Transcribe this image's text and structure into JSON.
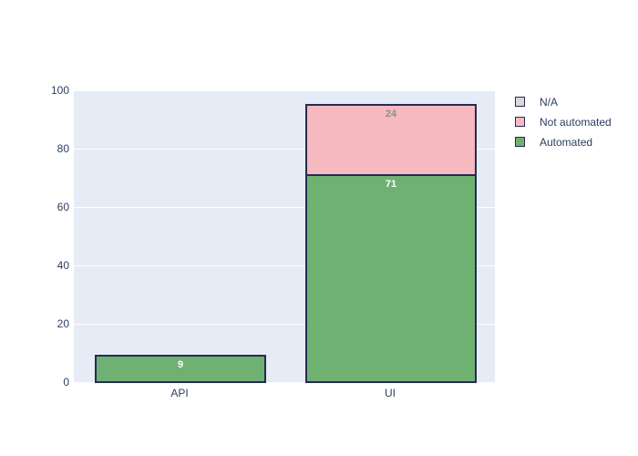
{
  "chart_data": {
    "type": "bar",
    "stacked": true,
    "title": "",
    "xlabel": "",
    "ylabel": "",
    "categories": [
      "API",
      "UI"
    ],
    "series": [
      {
        "name": "Automated",
        "color": "#6fb172",
        "label_color": "#ffffff",
        "values": [
          9,
          71
        ]
      },
      {
        "name": "Not automated",
        "color": "#f5b9bf",
        "label_color": "#8e8e8e",
        "values": [
          0,
          24
        ]
      },
      {
        "name": "N/A",
        "color": "#d9d9d9",
        "label_color": "#2a3f5f",
        "values": [
          0,
          0
        ]
      }
    ],
    "ylim": [
      0,
      100
    ],
    "yticks": [
      0,
      20,
      40,
      60,
      80,
      100
    ],
    "grid": true,
    "legend_position": "right"
  },
  "legend": {
    "items": [
      {
        "label": "N/A",
        "color": "#d9d9d9"
      },
      {
        "label": "Not automated",
        "color": "#f5b9bf"
      },
      {
        "label": "Automated",
        "color": "#6fb172"
      }
    ]
  },
  "colors": {
    "page_background": "#ffffff",
    "plot_background": "#e5ecf6",
    "gridline": "#ffffff",
    "axis_text": "#2a3f5f",
    "bar_border": "#252a52"
  }
}
